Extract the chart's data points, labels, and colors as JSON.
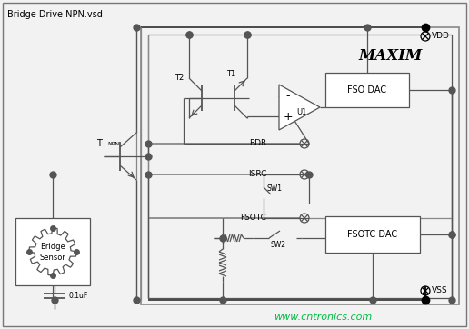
{
  "title": "Bridge Drive NPN.vsd",
  "bg_color": "#f2f2f2",
  "wire_dark": "#555555",
  "wire_gray": "#888888",
  "black": "#000000",
  "white": "#ffffff",
  "watermark": "www.cntronics.com",
  "watermark_color": "#00bb44",
  "vdd_label": "VDD",
  "vss_label": "VSS",
  "maxim_text": "MAXIM",
  "fso_dac_label": "FSO DAC",
  "fsotc_dac_label": "FSOTC DAC",
  "u1_label": "U1",
  "t1_label": "T1",
  "t2_label": "T2",
  "bdr_label": "BDR",
  "isrc_label": "ISRC",
  "fsotc_label": "FSOTC",
  "tnpn_label": "T",
  "tnpn_sub": "NPN",
  "bridge_label1": "Bridge",
  "bridge_label2": "Sensor",
  "cap_label": "0.1uF",
  "sw1_label": "SW1",
  "sw2_label": "SW2",
  "plus_label": "+",
  "minus_label": "-"
}
